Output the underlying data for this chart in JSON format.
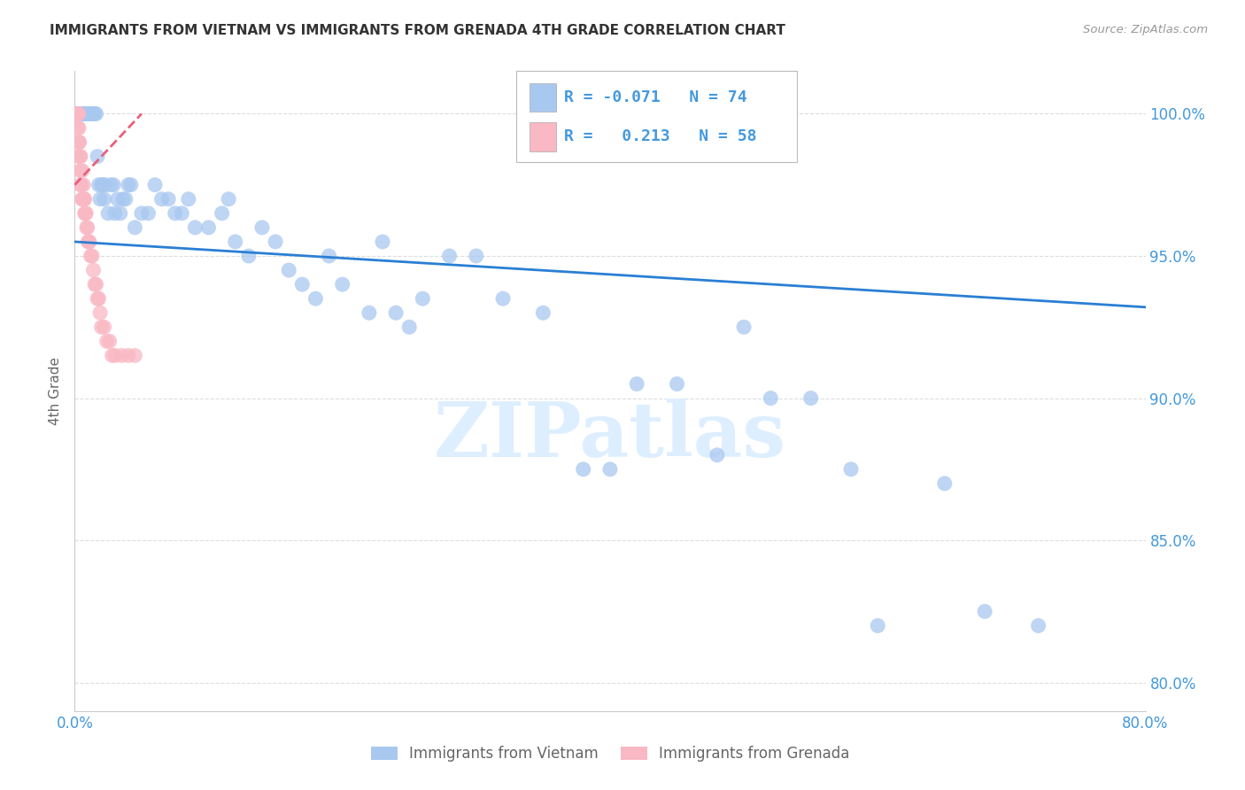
{
  "title": "IMMIGRANTS FROM VIETNAM VS IMMIGRANTS FROM GRENADA 4TH GRADE CORRELATION CHART",
  "source": "Source: ZipAtlas.com",
  "ylabel": "4th Grade",
  "xlim": [
    0,
    80
  ],
  "ylim": [
    79,
    101.5
  ],
  "yticks": [
    80,
    85,
    90,
    95,
    100
  ],
  "ytick_labels": [
    "80.0%",
    "85.0%",
    "90.0%",
    "95.0%",
    "100.0%"
  ],
  "legend_blue_label": "Immigrants from Vietnam",
  "legend_pink_label": "Immigrants from Grenada",
  "legend_R_blue": "-0.071",
  "legend_N_blue": "74",
  "legend_R_pink": "0.213",
  "legend_N_pink": "58",
  "blue_color": "#a8c8f0",
  "pink_color": "#f9b8c4",
  "trend_blue_color": "#2a7fd4",
  "trend_pink_color": "#e8607a",
  "watermark": "ZIPatlas",
  "blue_x": [
    0.3,
    0.5,
    0.6,
    0.7,
    0.8,
    0.9,
    1.0,
    1.1,
    1.2,
    1.3,
    1.4,
    1.5,
    1.6,
    1.7,
    1.8,
    1.9,
    2.0,
    2.1,
    2.2,
    2.3,
    2.5,
    2.7,
    2.9,
    3.0,
    3.2,
    3.4,
    3.6,
    3.8,
    4.0,
    4.2,
    4.5,
    5.0,
    5.5,
    6.0,
    6.5,
    7.0,
    7.5,
    8.0,
    8.5,
    9.0,
    10.0,
    11.0,
    11.5,
    12.0,
    13.0,
    14.0,
    15.0,
    16.0,
    17.0,
    18.0,
    19.0,
    20.0,
    22.0,
    23.0,
    24.0,
    25.0,
    26.0,
    28.0,
    30.0,
    32.0,
    35.0,
    38.0,
    40.0,
    42.0,
    45.0,
    48.0,
    50.0,
    52.0,
    55.0,
    58.0,
    60.0,
    65.0,
    68.0,
    72.0
  ],
  "blue_y": [
    100.0,
    100.0,
    100.0,
    100.0,
    100.0,
    100.0,
    100.0,
    100.0,
    100.0,
    100.0,
    100.0,
    100.0,
    100.0,
    98.5,
    97.5,
    97.0,
    97.5,
    97.5,
    97.0,
    97.5,
    96.5,
    97.5,
    97.5,
    96.5,
    97.0,
    96.5,
    97.0,
    97.0,
    97.5,
    97.5,
    96.0,
    96.5,
    96.5,
    97.5,
    97.0,
    97.0,
    96.5,
    96.5,
    97.0,
    96.0,
    96.0,
    96.5,
    97.0,
    95.5,
    95.0,
    96.0,
    95.5,
    94.5,
    94.0,
    93.5,
    95.0,
    94.0,
    93.0,
    95.5,
    93.0,
    92.5,
    93.5,
    95.0,
    95.0,
    93.5,
    93.0,
    87.5,
    87.5,
    90.5,
    90.5,
    88.0,
    92.5,
    90.0,
    90.0,
    87.5,
    82.0,
    87.0,
    82.5,
    82.0
  ],
  "pink_x": [
    0.05,
    0.08,
    0.1,
    0.12,
    0.15,
    0.18,
    0.2,
    0.22,
    0.25,
    0.28,
    0.3,
    0.32,
    0.35,
    0.38,
    0.4,
    0.45,
    0.5,
    0.55,
    0.6,
    0.65,
    0.7,
    0.75,
    0.8,
    0.85,
    0.9,
    0.95,
    1.0,
    1.05,
    1.1,
    1.2,
    1.3,
    1.4,
    1.5,
    1.6,
    1.7,
    1.8,
    1.9,
    2.0,
    2.2,
    2.4,
    2.6,
    2.8,
    3.0,
    3.5,
    4.0,
    4.5,
    0.15,
    0.25,
    0.35,
    0.45,
    0.55,
    0.65,
    0.75,
    0.05,
    0.08,
    0.12,
    0.2,
    0.3
  ],
  "pink_y": [
    100.0,
    100.0,
    100.0,
    100.0,
    100.0,
    100.0,
    100.0,
    100.0,
    100.0,
    100.0,
    99.5,
    99.0,
    98.5,
    98.5,
    98.0,
    97.5,
    97.5,
    97.0,
    97.0,
    97.0,
    97.0,
    96.5,
    96.5,
    96.5,
    96.0,
    96.0,
    95.5,
    95.5,
    95.5,
    95.0,
    95.0,
    94.5,
    94.0,
    94.0,
    93.5,
    93.5,
    93.0,
    92.5,
    92.5,
    92.0,
    92.0,
    91.5,
    91.5,
    91.5,
    91.5,
    91.5,
    100.0,
    99.5,
    99.0,
    98.5,
    98.0,
    97.5,
    97.0,
    100.0,
    100.0,
    100.0,
    100.0,
    99.0
  ],
  "blue_trend_x": [
    0,
    80
  ],
  "blue_trend_y": [
    95.5,
    93.2
  ],
  "pink_trend_x": [
    0,
    5.0
  ],
  "pink_trend_y": [
    97.5,
    100.0
  ],
  "background_color": "#ffffff",
  "grid_color": "#dddddd",
  "title_color": "#333333",
  "axis_color": "#4499dd",
  "watermark_color": "#ddeeff"
}
